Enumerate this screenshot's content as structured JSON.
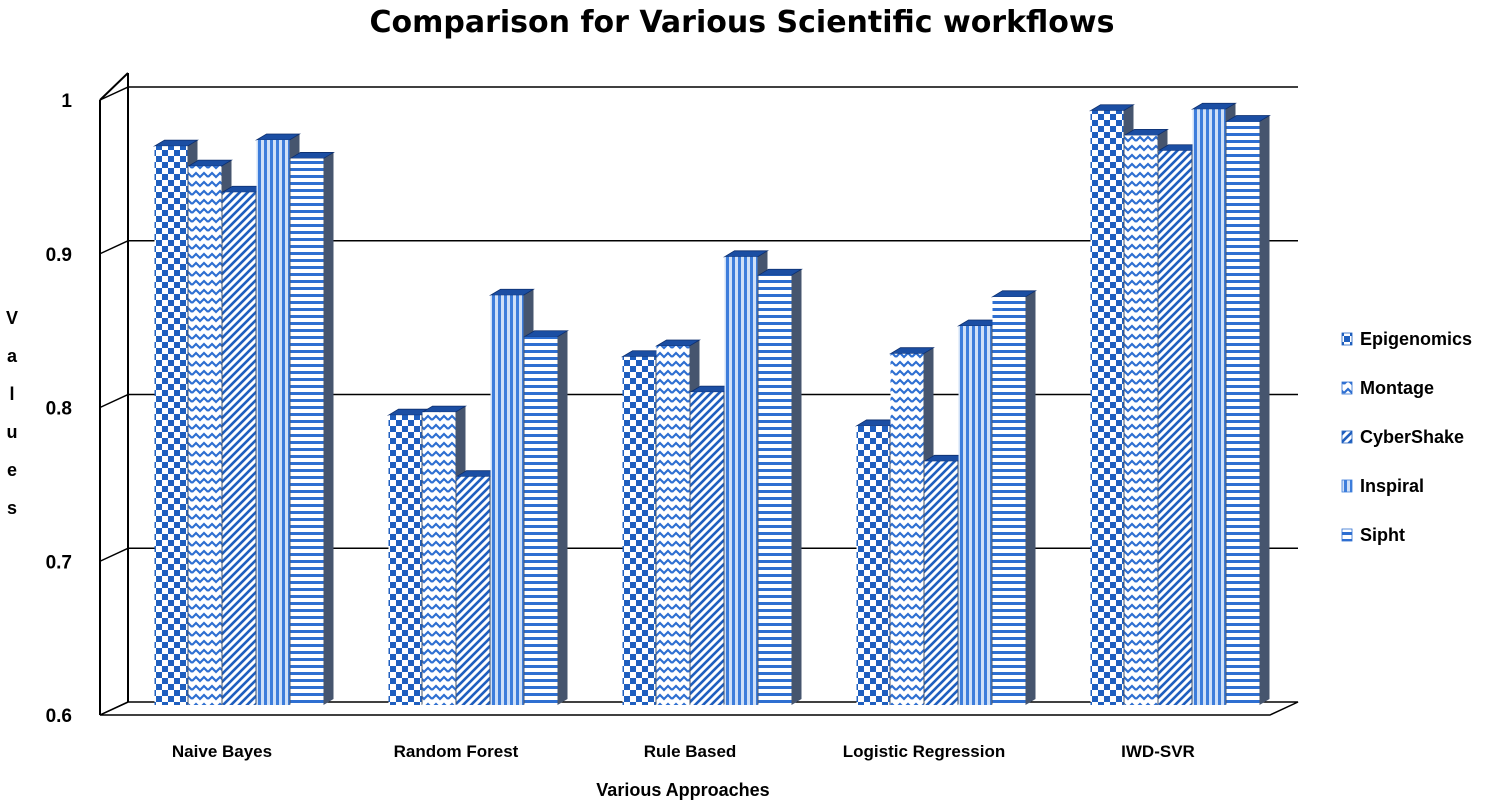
{
  "chart_data": {
    "type": "bar",
    "title": "Comparison for Various Scientific  workflows",
    "xlabel": "Various Approaches",
    "ylabel": "Values",
    "ylim": [
      0.6,
      1.0
    ],
    "yticks": [
      "0.6",
      "0.7",
      "0.8",
      "0.9",
      "1"
    ],
    "grid": true,
    "legend_position": "right",
    "categories": [
      "Naive Bayes",
      "Random Forest",
      "Rule Based",
      "Logistic Regression",
      "IWD-SVR"
    ],
    "series": [
      {
        "name": "Epigenomics",
        "values": [
          0.97,
          0.795,
          0.833,
          0.788,
          0.993
        ],
        "color": "#1f5fbf",
        "pattern": "checker"
      },
      {
        "name": "Montage",
        "values": [
          0.957,
          0.797,
          0.84,
          0.835,
          0.977
        ],
        "color": "#2e6fd1",
        "pattern": "wave"
      },
      {
        "name": "CyberShake",
        "values": [
          0.94,
          0.755,
          0.81,
          0.765,
          0.967
        ],
        "color": "#1f5fbf",
        "pattern": "diagonal"
      },
      {
        "name": "Inspiral",
        "values": [
          0.974,
          0.873,
          0.898,
          0.853,
          0.994
        ],
        "color": "#3d7ddb",
        "pattern": "vertical"
      },
      {
        "name": "Sipht",
        "values": [
          0.962,
          0.846,
          0.886,
          0.872,
          0.986
        ],
        "color": "#2e6fd1",
        "pattern": "horizontal"
      }
    ]
  }
}
